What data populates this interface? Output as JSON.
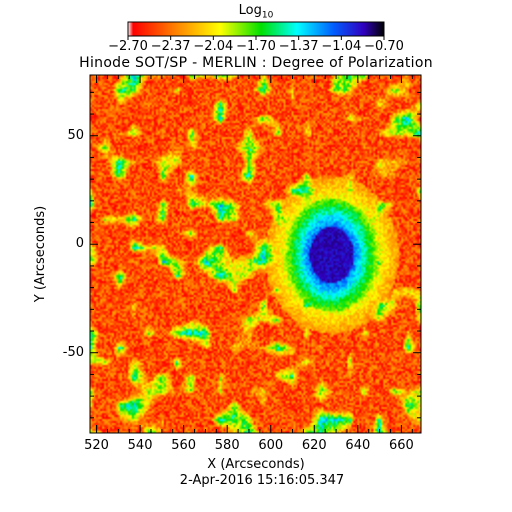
{
  "chart_data": {
    "type": "heatmap",
    "title": "Hinode SOT/SP - MERLIN : Degree of Polarization",
    "xlabel": "X (Arcseconds)",
    "ylabel": "Y (Arcseconds)",
    "xlim": [
      517,
      669
    ],
    "ylim": [
      -87,
      78
    ],
    "x_ticks": [
      520,
      540,
      560,
      580,
      600,
      620,
      640,
      660
    ],
    "y_ticks": [
      -50,
      0,
      50
    ],
    "colorbar": {
      "label_base": "Log",
      "label_sub": "10",
      "range": [
        -2.7,
        -0.7
      ],
      "tick_labels": [
        "−2.70",
        "−2.37",
        "−2.04",
        "−1.70",
        "−1.37",
        "−1.04",
        "−0.70"
      ],
      "colormap": [
        "#ffffff",
        "#ff0000",
        "#ff8c00",
        "#ffff00",
        "#00e000",
        "#00ffff",
        "#0060ff",
        "#3000c0",
        "#000000"
      ]
    },
    "features": {
      "sunspot_umbra_center": [
        628,
        -5
      ],
      "sunspot_umbra_radius": [
        10,
        13
      ],
      "sunspot_penumbra_radius": [
        22,
        26
      ],
      "background_log_dop": -2.5
    },
    "timestamp": "2‐Apr‐2016 15:16:05.347"
  }
}
